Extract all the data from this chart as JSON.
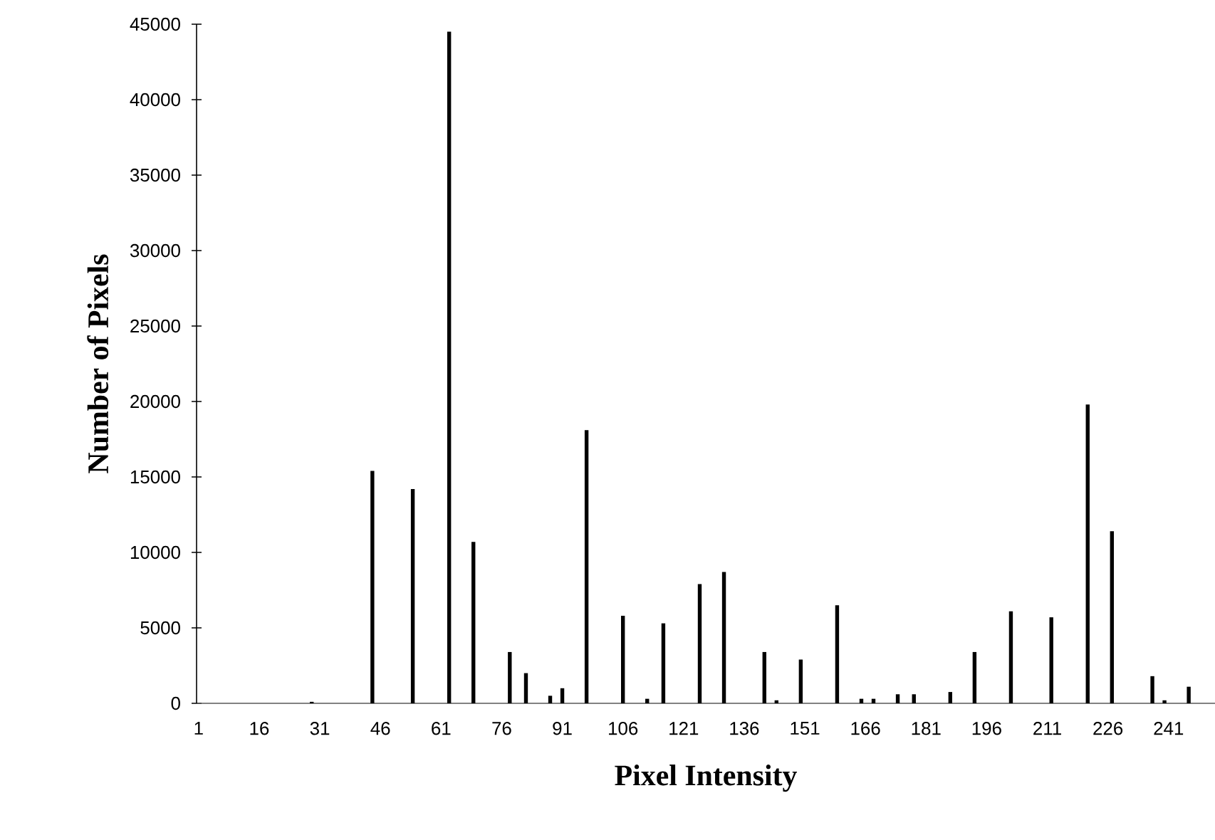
{
  "chart_data": {
    "type": "bar",
    "xlabel": "Pixel Intensity",
    "ylabel": "Number of Pixels",
    "color": "#000000",
    "x": [
      29,
      44,
      54,
      63,
      69,
      78,
      82,
      88,
      91,
      97,
      106,
      112,
      116,
      125,
      131,
      141,
      144,
      150,
      159,
      165,
      168,
      174,
      178,
      187,
      193,
      202,
      212,
      221,
      227,
      237,
      240,
      246
    ],
    "values": [
      100,
      15400,
      14200,
      44500,
      10700,
      3400,
      2000,
      500,
      1000,
      18100,
      5800,
      300,
      5300,
      7900,
      8700,
      3400,
      200,
      2900,
      6500,
      300,
      300,
      600,
      600,
      750,
      3400,
      6100,
      5700,
      19800,
      11400,
      1800,
      200,
      1100
    ],
    "xlim": [
      0.5,
      252.5
    ],
    "xticks": [
      1,
      16,
      31,
      46,
      61,
      76,
      91,
      106,
      121,
      136,
      151,
      166,
      181,
      196,
      211,
      226,
      241
    ],
    "ylim": [
      0,
      45000
    ],
    "yticks": [
      0,
      5000,
      10000,
      15000,
      20000,
      25000,
      30000,
      35000,
      40000,
      45000
    ]
  }
}
